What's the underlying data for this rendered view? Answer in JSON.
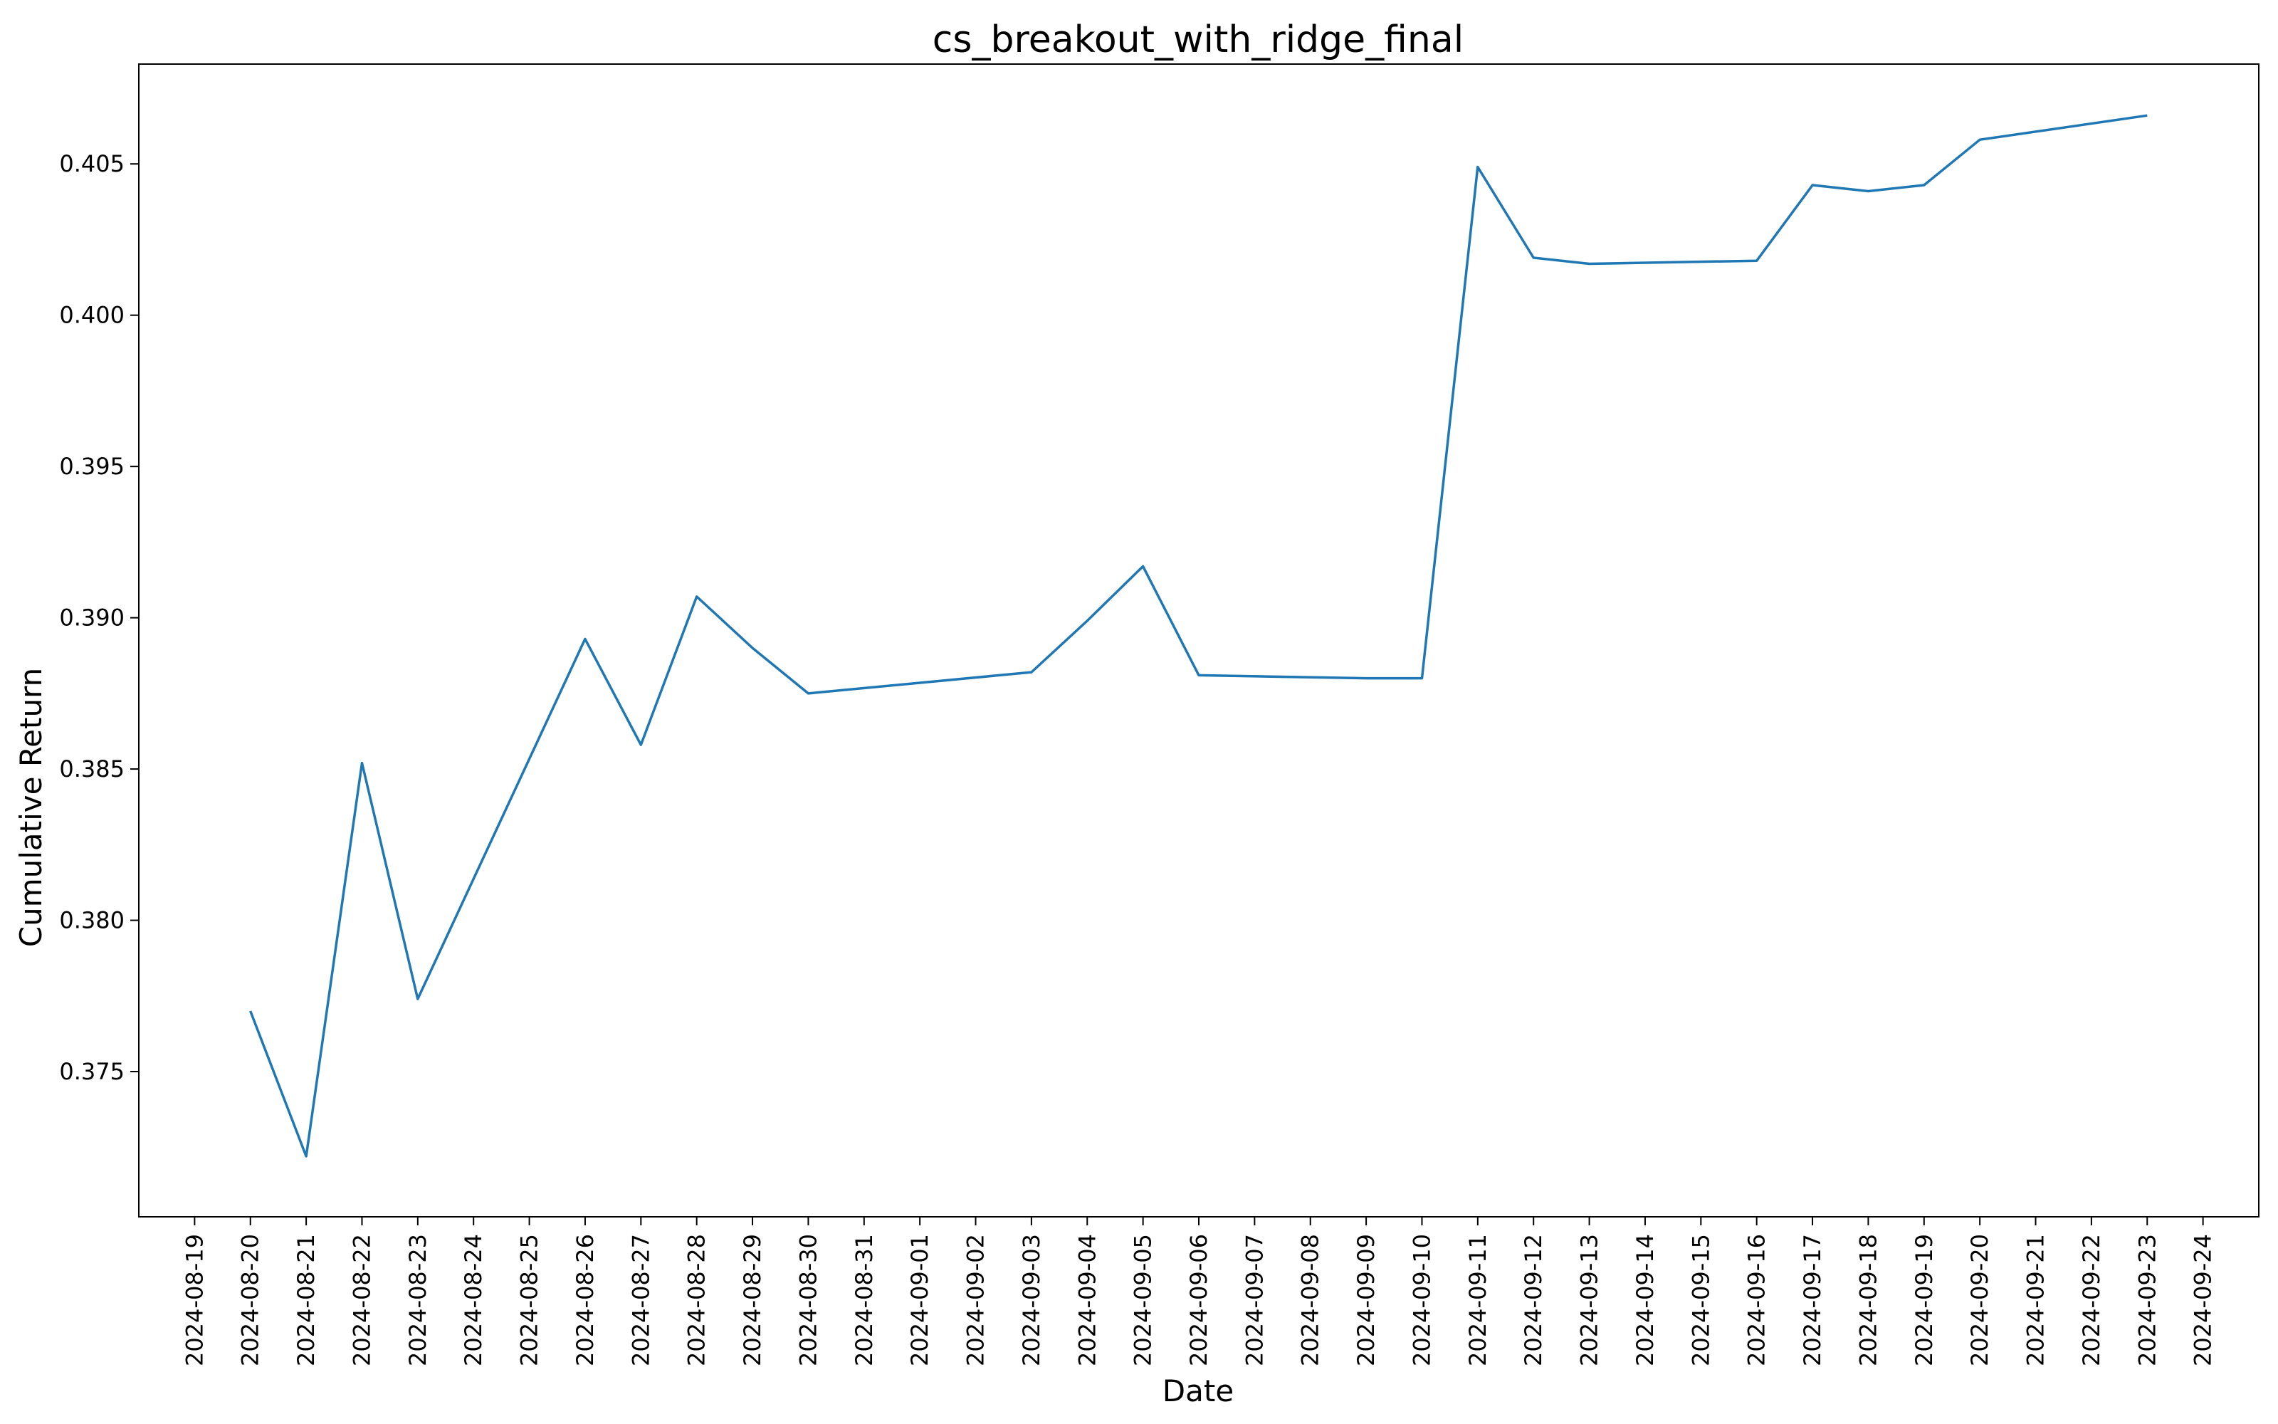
{
  "chart_data": {
    "type": "line",
    "title": "cs_breakout_with_ridge_final",
    "xlabel": "Date",
    "ylabel": "Cumulative Return",
    "xlim": [
      "2024-08-18",
      "2024-09-25"
    ],
    "ylim": [
      0.3702,
      0.4083
    ],
    "grid": false,
    "x_ticks": [
      "2024-08-19",
      "2024-08-20",
      "2024-08-21",
      "2024-08-22",
      "2024-08-23",
      "2024-08-24",
      "2024-08-25",
      "2024-08-26",
      "2024-08-27",
      "2024-08-28",
      "2024-08-29",
      "2024-08-30",
      "2024-08-31",
      "2024-09-01",
      "2024-09-02",
      "2024-09-03",
      "2024-09-04",
      "2024-09-05",
      "2024-09-06",
      "2024-09-07",
      "2024-09-08",
      "2024-09-09",
      "2024-09-10",
      "2024-09-11",
      "2024-09-12",
      "2024-09-13",
      "2024-09-14",
      "2024-09-15",
      "2024-09-16",
      "2024-09-17",
      "2024-09-18",
      "2024-09-19",
      "2024-09-20",
      "2024-09-21",
      "2024-09-22",
      "2024-09-23",
      "2024-09-24"
    ],
    "y_ticks": [
      "0.375",
      "0.380",
      "0.385",
      "0.390",
      "0.395",
      "0.400",
      "0.405"
    ],
    "series": [
      {
        "color": "#1f77b4",
        "x": [
          "2024-08-20",
          "2024-08-21",
          "2024-08-22",
          "2024-08-23",
          "2024-08-26",
          "2024-08-27",
          "2024-08-28",
          "2024-08-29",
          "2024-08-30",
          "2024-09-03",
          "2024-09-04",
          "2024-09-05",
          "2024-09-06",
          "2024-09-09",
          "2024-09-10",
          "2024-09-11",
          "2024-09-12",
          "2024-09-13",
          "2024-09-16",
          "2024-09-17",
          "2024-09-18",
          "2024-09-19",
          "2024-09-20",
          "2024-09-23"
        ],
        "y": [
          0.377,
          0.3722,
          0.3852,
          0.3774,
          0.3893,
          0.3858,
          0.3907,
          0.389,
          0.3875,
          0.3882,
          0.3899,
          0.3917,
          0.3881,
          0.388,
          0.388,
          0.4049,
          0.4019,
          0.4017,
          0.4018,
          0.4043,
          0.4041,
          0.4043,
          0.4058,
          0.4066
        ]
      }
    ]
  }
}
